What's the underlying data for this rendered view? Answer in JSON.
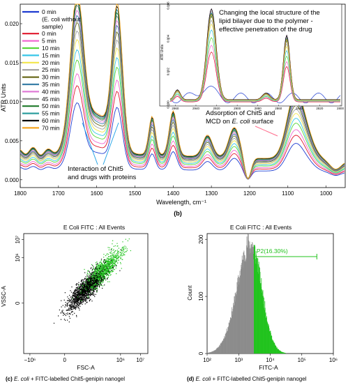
{
  "panel_b": {
    "label": "(b)",
    "ylabel": "ATR Units",
    "xlabel": "Wavelength, cm⁻¹",
    "x_ticks": [
      "1800",
      "1700",
      "1600",
      "1500",
      "1400",
      "1300",
      "1200",
      "1100",
      "1000"
    ],
    "y_ticks": [
      "0.000",
      "0.005",
      "0.010",
      "0.015",
      "0.020"
    ],
    "legend": [
      {
        "label": "0 min",
        "color": "#1e3bd1"
      },
      {
        "label": "(E. coli without",
        "color": null
      },
      {
        "label": "sample)",
        "color": null
      },
      {
        "label": "0 min",
        "color": "#e0182d"
      },
      {
        "label": "5 min",
        "color": "#f06ad1"
      },
      {
        "label": "10 min",
        "color": "#58d83a"
      },
      {
        "label": "15 min",
        "color": "#37c6e8"
      },
      {
        "label": "20 min",
        "color": "#f2e64a"
      },
      {
        "label": "25 min",
        "color": "#a0a0a0"
      },
      {
        "label": "30 min",
        "color": "#6b6b1e"
      },
      {
        "label": "35 min",
        "color": "#3a7fa8"
      },
      {
        "label": "40 min",
        "color": "#e07bd6"
      },
      {
        "label": "45 min",
        "color": "#8a8a8a"
      },
      {
        "label": "50 min",
        "color": "#1f7a2a"
      },
      {
        "label": "55 min",
        "color": "#2e9e9e"
      },
      {
        "label": "60 min",
        "color": "#000000"
      },
      {
        "label": "70 min",
        "color": "#f5a623"
      }
    ],
    "annotations": {
      "inset_text_1": "Changing the local structure of the",
      "inset_text_2": "lipid bilayer due to the polymer -",
      "inset_text_3": "effective penetration of the drug",
      "adsorption_1": "Adsorption of Chit5 and",
      "adsorption_2_a": "MCD on ",
      "adsorption_2_b": "E. coli",
      "adsorption_2_c": " surface",
      "interaction_1": "Interaction of Chit5",
      "interaction_2": "and drugs with proteins"
    },
    "inset": {
      "ylabel": "ATR Units",
      "x_ticks": [
        "2960",
        "2940",
        "2920",
        "2900",
        "2880",
        "2860",
        "2840",
        "2820",
        "2800"
      ],
      "y_ticks": [
        "0.000",
        "0.002",
        "0.004",
        "0.006"
      ]
    }
  },
  "panel_c": {
    "title": "E Coli FITC : All Events",
    "xlabel": "FSC-A",
    "ylabel": "VSSC-A",
    "x_ticks": [
      "−10⁶",
      "0",
      "10⁶",
      "10⁷"
    ],
    "y_ticks": [
      "0",
      "10⁶",
      "10⁷"
    ],
    "caption_a": "(c) ",
    "caption_b": "E. coli",
    "caption_c": " + FITC-labelled Chit5-genipin nanogel"
  },
  "panel_d": {
    "title": "E Coli FITC : All Events",
    "xlabel": "FITC-A",
    "ylabel": "Count",
    "gate_label": "P2(16.30%)",
    "x_ticks": [
      "10²",
      "10³",
      "10⁴",
      "10⁵",
      "10⁶"
    ],
    "y_ticks": [
      "0",
      "100",
      "200"
    ],
    "caption_a": "(d) ",
    "caption_b": "E. coli",
    "caption_c": " + FITC-labelled Chit5-genipin nanogel"
  },
  "chart_data": [
    {
      "type": "line",
      "title": "",
      "xlabel": "Wavelength, cm⁻¹",
      "ylabel": "ATR Units",
      "xlim": [
        1800,
        950
      ],
      "ylim": [
        -0.001,
        0.0225
      ],
      "series_count": 16,
      "peaks": [
        {
          "x": 1650,
          "y_max": 0.0205
        },
        {
          "x": 1545,
          "y_max": 0.0195
        },
        {
          "x": 1082,
          "y_max": 0.0095
        }
      ]
    },
    {
      "type": "line",
      "title": "",
      "xlabel": "",
      "ylabel": "ATR Units",
      "xlim": [
        2965,
        2800
      ],
      "ylim": [
        0,
        0.006
      ],
      "peaks": [
        {
          "x": 2925,
          "y_max": 0.0058
        },
        {
          "x": 2852,
          "y_max": 0.0042
        }
      ]
    },
    {
      "type": "scatter",
      "title": "E Coli FITC : All Events",
      "xlabel": "FSC-A",
      "ylabel": "VSSC-A",
      "series": [
        {
          "color": "#000000"
        },
        {
          "color": "#22c31e"
        }
      ]
    },
    {
      "type": "bar",
      "title": "E Coli FITC : All Events",
      "xlabel": "FITC-A",
      "ylabel": "Count",
      "xscale": "log",
      "xlim": [
        100,
        1000000
      ],
      "ylim": [
        0,
        210
      ],
      "gate": {
        "label": "P2(16.30%)",
        "start": 3000,
        "end": 300000
      },
      "series": [
        {
          "name": "",
          "color": "#8c8c8c"
        },
        {
          "name": "",
          "color": "#22c31e"
        }
      ]
    }
  ]
}
